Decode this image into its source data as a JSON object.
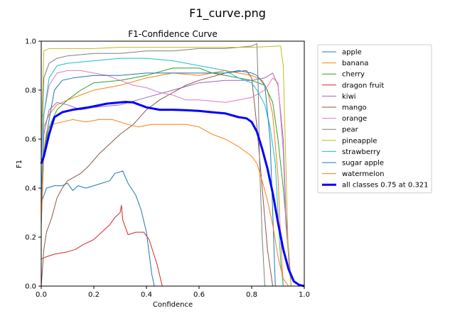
{
  "figure_title": "F1_curve.png",
  "chart_data": {
    "type": "line",
    "title": "F1-Confidence Curve",
    "xlabel": "Confidence",
    "ylabel": "F1",
    "xlim": [
      0.0,
      1.0
    ],
    "ylim": [
      0.0,
      1.0
    ],
    "xticks": [
      "0.0",
      "0.2",
      "0.4",
      "0.6",
      "0.8",
      "1.0"
    ],
    "yticks": [
      "0.0",
      "0.2",
      "0.4",
      "0.6",
      "0.8",
      "1.0"
    ],
    "grid": false,
    "legend_position": "outside-right",
    "series": [
      {
        "name": "apple",
        "color": "#1f77b4",
        "points": [
          [
            0.0,
            0.34
          ],
          [
            0.01,
            0.37
          ],
          [
            0.02,
            0.4
          ],
          [
            0.05,
            0.41
          ],
          [
            0.08,
            0.41
          ],
          [
            0.1,
            0.42
          ],
          [
            0.12,
            0.39
          ],
          [
            0.14,
            0.41
          ],
          [
            0.17,
            0.4
          ],
          [
            0.2,
            0.41
          ],
          [
            0.23,
            0.42
          ],
          [
            0.26,
            0.43
          ],
          [
            0.28,
            0.46
          ],
          [
            0.31,
            0.47
          ],
          [
            0.33,
            0.42
          ],
          [
            0.36,
            0.37
          ],
          [
            0.38,
            0.31
          ],
          [
            0.4,
            0.22
          ],
          [
            0.42,
            0.05
          ],
          [
            0.43,
            0.0
          ]
        ]
      },
      {
        "name": "banana",
        "color": "#ff7f0e",
        "points": [
          [
            0.0,
            0.3
          ],
          [
            0.01,
            0.65
          ],
          [
            0.03,
            0.7
          ],
          [
            0.06,
            0.74
          ],
          [
            0.1,
            0.76
          ],
          [
            0.15,
            0.78
          ],
          [
            0.2,
            0.8
          ],
          [
            0.3,
            0.82
          ],
          [
            0.4,
            0.85
          ],
          [
            0.5,
            0.87
          ],
          [
            0.6,
            0.86
          ],
          [
            0.7,
            0.88
          ],
          [
            0.8,
            0.86
          ],
          [
            0.84,
            0.84
          ],
          [
            0.86,
            0.8
          ],
          [
            0.88,
            0.7
          ],
          [
            0.9,
            0.45
          ],
          [
            0.91,
            0.2
          ],
          [
            0.92,
            0.0
          ]
        ]
      },
      {
        "name": "cherry",
        "color": "#2ca02c",
        "points": [
          [
            0.0,
            0.3
          ],
          [
            0.01,
            0.55
          ],
          [
            0.03,
            0.65
          ],
          [
            0.06,
            0.72
          ],
          [
            0.1,
            0.76
          ],
          [
            0.15,
            0.8
          ],
          [
            0.2,
            0.83
          ],
          [
            0.3,
            0.84
          ],
          [
            0.4,
            0.86
          ],
          [
            0.5,
            0.89
          ],
          [
            0.6,
            0.89
          ],
          [
            0.65,
            0.87
          ],
          [
            0.7,
            0.86
          ],
          [
            0.8,
            0.84
          ],
          [
            0.85,
            0.82
          ],
          [
            0.88,
            0.75
          ],
          [
            0.9,
            0.6
          ],
          [
            0.92,
            0.4
          ],
          [
            0.94,
            0.15
          ],
          [
            0.95,
            0.0
          ]
        ]
      },
      {
        "name": "dragon fruit",
        "color": "#d62728",
        "points": [
          [
            0.0,
            0.11
          ],
          [
            0.02,
            0.12
          ],
          [
            0.05,
            0.13
          ],
          [
            0.1,
            0.14
          ],
          [
            0.13,
            0.15
          ],
          [
            0.16,
            0.17
          ],
          [
            0.2,
            0.19
          ],
          [
            0.23,
            0.22
          ],
          [
            0.26,
            0.25
          ],
          [
            0.28,
            0.28
          ],
          [
            0.3,
            0.3
          ],
          [
            0.305,
            0.33
          ],
          [
            0.31,
            0.27
          ],
          [
            0.33,
            0.21
          ],
          [
            0.36,
            0.22
          ],
          [
            0.39,
            0.22
          ],
          [
            0.41,
            0.19
          ],
          [
            0.44,
            0.09
          ],
          [
            0.46,
            0.0
          ]
        ]
      },
      {
        "name": "kiwi",
        "color": "#9467bd",
        "points": [
          [
            0.0,
            0.35
          ],
          [
            0.01,
            0.62
          ],
          [
            0.03,
            0.72
          ],
          [
            0.06,
            0.75
          ],
          [
            0.1,
            0.74
          ],
          [
            0.15,
            0.72
          ],
          [
            0.2,
            0.73
          ],
          [
            0.3,
            0.74
          ],
          [
            0.4,
            0.77
          ],
          [
            0.5,
            0.8
          ],
          [
            0.6,
            0.83
          ],
          [
            0.7,
            0.84
          ],
          [
            0.8,
            0.84
          ],
          [
            0.85,
            0.85
          ],
          [
            0.88,
            0.87
          ],
          [
            0.9,
            0.82
          ],
          [
            0.92,
            0.6
          ],
          [
            0.93,
            0.3
          ],
          [
            0.95,
            0.0
          ]
        ]
      },
      {
        "name": "mango",
        "color": "#8c564b",
        "points": [
          [
            0.0,
            0.0
          ],
          [
            0.01,
            0.15
          ],
          [
            0.02,
            0.22
          ],
          [
            0.04,
            0.28
          ],
          [
            0.06,
            0.36
          ],
          [
            0.08,
            0.4
          ],
          [
            0.1,
            0.43
          ],
          [
            0.15,
            0.46
          ],
          [
            0.18,
            0.49
          ],
          [
            0.22,
            0.54
          ],
          [
            0.26,
            0.58
          ],
          [
            0.3,
            0.62
          ],
          [
            0.35,
            0.66
          ],
          [
            0.4,
            0.72
          ],
          [
            0.45,
            0.76
          ],
          [
            0.5,
            0.79
          ],
          [
            0.55,
            0.82
          ],
          [
            0.6,
            0.84
          ],
          [
            0.7,
            0.87
          ],
          [
            0.78,
            0.88
          ],
          [
            0.8,
            0.85
          ],
          [
            0.82,
            0.65
          ],
          [
            0.84,
            0.4
          ],
          [
            0.86,
            0.15
          ],
          [
            0.88,
            0.0
          ]
        ]
      },
      {
        "name": "orange",
        "color": "#e377c2",
        "points": [
          [
            0.0,
            0.3
          ],
          [
            0.01,
            0.7
          ],
          [
            0.03,
            0.82
          ],
          [
            0.06,
            0.87
          ],
          [
            0.1,
            0.88
          ],
          [
            0.15,
            0.88
          ],
          [
            0.2,
            0.87
          ],
          [
            0.25,
            0.86
          ],
          [
            0.3,
            0.84
          ],
          [
            0.35,
            0.82
          ],
          [
            0.4,
            0.81
          ],
          [
            0.45,
            0.79
          ],
          [
            0.5,
            0.78
          ],
          [
            0.55,
            0.76
          ],
          [
            0.6,
            0.76
          ],
          [
            0.7,
            0.75
          ],
          [
            0.8,
            0.77
          ],
          [
            0.85,
            0.8
          ],
          [
            0.88,
            0.85
          ],
          [
            0.9,
            0.83
          ],
          [
            0.92,
            0.55
          ],
          [
            0.93,
            0.25
          ],
          [
            0.95,
            0.0
          ]
        ]
      },
      {
        "name": "pear",
        "color": "#7f7f7f",
        "points": [
          [
            0.0,
            0.5
          ],
          [
            0.01,
            0.85
          ],
          [
            0.03,
            0.91
          ],
          [
            0.06,
            0.93
          ],
          [
            0.1,
            0.94
          ],
          [
            0.2,
            0.95
          ],
          [
            0.3,
            0.95
          ],
          [
            0.4,
            0.96
          ],
          [
            0.5,
            0.96
          ],
          [
            0.6,
            0.97
          ],
          [
            0.7,
            0.97
          ],
          [
            0.8,
            0.98
          ],
          [
            0.82,
            0.99
          ],
          [
            0.825,
            0.8
          ],
          [
            0.83,
            0.5
          ],
          [
            0.84,
            0.2
          ],
          [
            0.85,
            0.0
          ]
        ]
      },
      {
        "name": "pineapple",
        "color": "#bcbd22",
        "points": [
          [
            0.0,
            0.6
          ],
          [
            0.01,
            0.96
          ],
          [
            0.03,
            0.97
          ],
          [
            0.1,
            0.97
          ],
          [
            0.2,
            0.97
          ],
          [
            0.3,
            0.975
          ],
          [
            0.5,
            0.975
          ],
          [
            0.7,
            0.975
          ],
          [
            0.8,
            0.975
          ],
          [
            0.9,
            0.98
          ],
          [
            0.91,
            0.98
          ],
          [
            0.92,
            0.9
          ],
          [
            0.93,
            0.5
          ],
          [
            0.94,
            0.1
          ],
          [
            0.95,
            0.0
          ]
        ]
      },
      {
        "name": "strawberry",
        "color": "#17becf",
        "points": [
          [
            0.0,
            0.35
          ],
          [
            0.01,
            0.7
          ],
          [
            0.03,
            0.85
          ],
          [
            0.06,
            0.9
          ],
          [
            0.1,
            0.91
          ],
          [
            0.2,
            0.92
          ],
          [
            0.3,
            0.93
          ],
          [
            0.4,
            0.93
          ],
          [
            0.5,
            0.92
          ],
          [
            0.6,
            0.9
          ],
          [
            0.7,
            0.88
          ],
          [
            0.75,
            0.85
          ],
          [
            0.8,
            0.83
          ],
          [
            0.82,
            0.8
          ],
          [
            0.85,
            0.74
          ],
          [
            0.87,
            0.65
          ],
          [
            0.89,
            0.5
          ],
          [
            0.9,
            0.3
          ],
          [
            0.91,
            0.1
          ],
          [
            0.92,
            0.0
          ]
        ]
      },
      {
        "name": "sugar apple",
        "color": "#1f77b4",
        "points": [
          [
            0.0,
            0.25
          ],
          [
            0.01,
            0.55
          ],
          [
            0.03,
            0.68
          ],
          [
            0.05,
            0.8
          ],
          [
            0.08,
            0.84
          ],
          [
            0.12,
            0.85
          ],
          [
            0.2,
            0.86
          ],
          [
            0.3,
            0.86
          ],
          [
            0.4,
            0.87
          ],
          [
            0.5,
            0.87
          ],
          [
            0.6,
            0.87
          ],
          [
            0.7,
            0.87
          ],
          [
            0.75,
            0.88
          ],
          [
            0.8,
            0.87
          ],
          [
            0.82,
            0.86
          ],
          [
            0.85,
            0.82
          ],
          [
            0.87,
            0.6
          ],
          [
            0.88,
            0.3
          ],
          [
            0.89,
            0.0
          ]
        ]
      },
      {
        "name": "watermelon",
        "color": "#ff7f0e",
        "points": [
          [
            0.0,
            0.25
          ],
          [
            0.01,
            0.55
          ],
          [
            0.02,
            0.63
          ],
          [
            0.04,
            0.66
          ],
          [
            0.08,
            0.67
          ],
          [
            0.12,
            0.68
          ],
          [
            0.17,
            0.67
          ],
          [
            0.22,
            0.68
          ],
          [
            0.27,
            0.68
          ],
          [
            0.3,
            0.67
          ],
          [
            0.33,
            0.66
          ],
          [
            0.37,
            0.65
          ],
          [
            0.42,
            0.66
          ],
          [
            0.5,
            0.66
          ],
          [
            0.55,
            0.66
          ],
          [
            0.6,
            0.65
          ],
          [
            0.65,
            0.62
          ],
          [
            0.7,
            0.6
          ],
          [
            0.75,
            0.57
          ],
          [
            0.8,
            0.53
          ],
          [
            0.82,
            0.5
          ],
          [
            0.84,
            0.43
          ],
          [
            0.86,
            0.35
          ],
          [
            0.88,
            0.25
          ],
          [
            0.9,
            0.12
          ],
          [
            0.92,
            0.03
          ],
          [
            0.94,
            0.0
          ]
        ]
      },
      {
        "name": "all classes 0.75 at 0.321",
        "color": "#0000ff",
        "bold": true,
        "points": [
          [
            0.0,
            0.5
          ],
          [
            0.01,
            0.53
          ],
          [
            0.03,
            0.62
          ],
          [
            0.05,
            0.69
          ],
          [
            0.08,
            0.71
          ],
          [
            0.12,
            0.72
          ],
          [
            0.18,
            0.73
          ],
          [
            0.25,
            0.745
          ],
          [
            0.3,
            0.75
          ],
          [
            0.321,
            0.752
          ],
          [
            0.35,
            0.75
          ],
          [
            0.4,
            0.73
          ],
          [
            0.45,
            0.72
          ],
          [
            0.5,
            0.72
          ],
          [
            0.55,
            0.718
          ],
          [
            0.6,
            0.715
          ],
          [
            0.65,
            0.71
          ],
          [
            0.7,
            0.705
          ],
          [
            0.75,
            0.69
          ],
          [
            0.78,
            0.685
          ],
          [
            0.8,
            0.67
          ],
          [
            0.82,
            0.63
          ],
          [
            0.84,
            0.56
          ],
          [
            0.86,
            0.48
          ],
          [
            0.88,
            0.38
          ],
          [
            0.9,
            0.26
          ],
          [
            0.92,
            0.15
          ],
          [
            0.94,
            0.07
          ],
          [
            0.96,
            0.02
          ],
          [
            0.98,
            0.005
          ],
          [
            1.0,
            0.0
          ]
        ]
      }
    ]
  }
}
